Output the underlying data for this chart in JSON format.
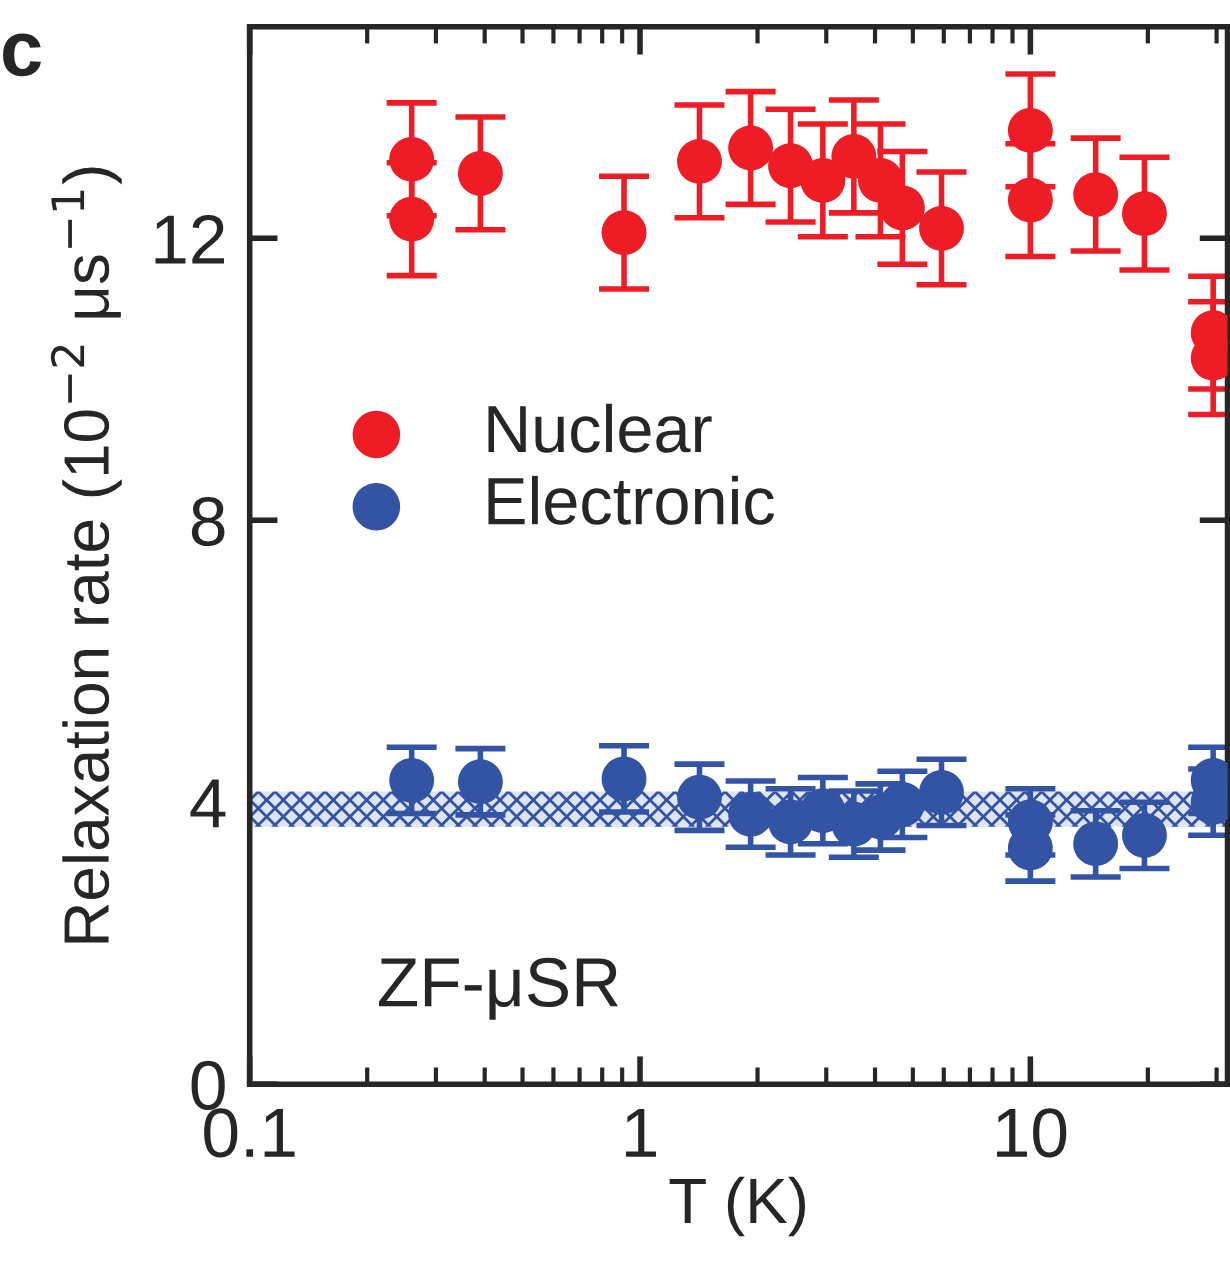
{
  "chart_data": {
    "type": "scatter",
    "xlabel": "T (K)",
    "ylabel": "Relaxation rate (10$^{−2}$ μs$^{−1}$)",
    "annotations": [
      "c",
      "ZF-μSR"
    ],
    "log": "x",
    "xlim": [
      0.1,
      32
    ],
    "xticks": [
      0.1,
      1,
      10
    ],
    "ylim": [
      0,
      15
    ],
    "yticks": [
      0,
      4,
      8,
      12
    ],
    "grid": false,
    "legend": "left",
    "marker": "circle",
    "bands": [
      {
        "axis": "y",
        "from": 3.65,
        "to": 4.15,
        "color": "#3353a4"
      }
    ],
    "series": [
      {
        "name": "Nuclear",
        "color": "#ee1c24",
        "x": [
          0.26,
          0.26,
          0.39,
          0.91,
          1.42,
          1.92,
          2.43,
          2.94,
          3.53,
          4.13,
          4.7,
          5.92,
          10,
          10,
          14.7,
          19.6,
          29.4,
          29.4
        ],
        "values": [
          13.12,
          12.27,
          12.92,
          12.08,
          13.09,
          13.28,
          13.03,
          12.82,
          13.16,
          12.82,
          12.43,
          12.14,
          13.53,
          12.54,
          12.62,
          12.35,
          10.66,
          10.3
        ],
        "errors": [
          0.8,
          0.8,
          0.8,
          0.8,
          0.8,
          0.8,
          0.8,
          0.8,
          0.8,
          0.8,
          0.8,
          0.8,
          0.8,
          0.8,
          0.8,
          0.8,
          0.8,
          0.8
        ]
      },
      {
        "name": "Electronic",
        "color": "#3353a4",
        "x": [
          0.26,
          0.39,
          0.91,
          1.42,
          1.92,
          2.43,
          2.94,
          3.53,
          4.13,
          4.7,
          5.92,
          10,
          10,
          14.7,
          19.6,
          29.4,
          29.4
        ],
        "values": [
          4.31,
          4.29,
          4.33,
          4.07,
          3.83,
          3.72,
          3.88,
          3.69,
          3.79,
          3.97,
          4.14,
          3.35,
          3.72,
          3.41,
          3.53,
          4.31,
          4.0
        ],
        "errors": [
          0.47,
          0.47,
          0.47,
          0.47,
          0.47,
          0.47,
          0.47,
          0.47,
          0.47,
          0.47,
          0.47,
          0.47,
          0.47,
          0.47,
          0.47,
          0.47,
          0.47
        ]
      }
    ]
  }
}
